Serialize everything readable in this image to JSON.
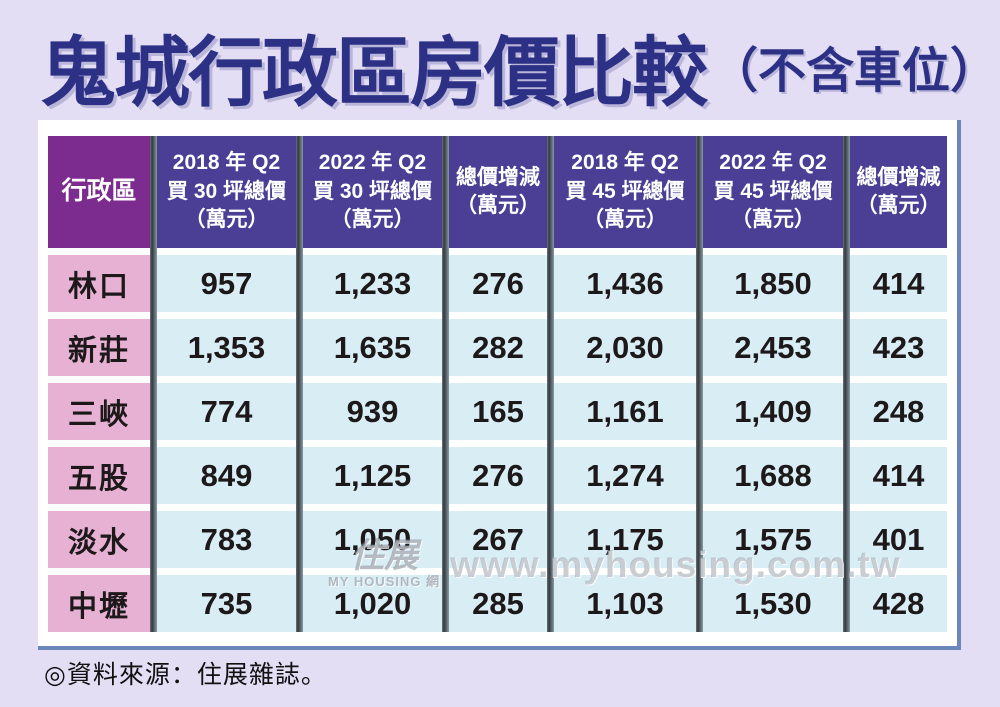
{
  "page": {
    "title_main": "鬼城行政區房價比較",
    "title_note": "（不含車位）",
    "source_note": "◎資料來源：住展雜誌。"
  },
  "watermark": {
    "logo_text": "住展",
    "logo_subtext": "MY HOUSING 網",
    "url": "www.myhousing.com.tw"
  },
  "colors": {
    "page_background": "#e4def5",
    "title_navy": "#2c3186",
    "header_purple": "#7c2b8e",
    "header_indigo": "#4a3e95",
    "district_pink": "#e7b1d3",
    "value_cell_blue": "#d9edf5",
    "panel_border_blue": "#6c86bb",
    "text_dark": "#1d191a"
  },
  "table": {
    "headers": [
      "行政區",
      "2018 年 Q2\n買 30 坪總價\n（萬元）",
      "2022 年 Q2\n買 30 坪總價\n（萬元）",
      "總價增減\n（萬元）",
      "2018 年 Q2\n買 45 坪總價\n（萬元）",
      "2022 年 Q2\n買 45 坪總價\n（萬元）",
      "總價增減\n（萬元）"
    ],
    "rows": [
      {
        "district": "林口",
        "values": [
          "957",
          "1,233",
          "276",
          "1,436",
          "1,850",
          "414"
        ]
      },
      {
        "district": "新莊",
        "values": [
          "1,353",
          "1,635",
          "282",
          "2,030",
          "2,453",
          "423"
        ]
      },
      {
        "district": "三峽",
        "values": [
          "774",
          "939",
          "165",
          "1,161",
          "1,409",
          "248"
        ]
      },
      {
        "district": "五股",
        "values": [
          "849",
          "1,125",
          "276",
          "1,274",
          "1,688",
          "414"
        ]
      },
      {
        "district": "淡水",
        "values": [
          "783",
          "1,050",
          "267",
          "1,175",
          "1,575",
          "401"
        ]
      },
      {
        "district": "中壢",
        "values": [
          "735",
          "1,020",
          "285",
          "1,103",
          "1,530",
          "428"
        ]
      }
    ]
  },
  "chart_data": {
    "type": "table",
    "title": "鬼城行政區房價比較（不含車位）",
    "categories": [
      "林口",
      "新莊",
      "三峽",
      "五股",
      "淡水",
      "中壢"
    ],
    "series": [
      {
        "name": "2018年Q2買30坪總價（萬元）",
        "values": [
          957,
          1353,
          774,
          849,
          783,
          735
        ]
      },
      {
        "name": "2022年Q2買30坪總價（萬元）",
        "values": [
          1233,
          1635,
          939,
          1125,
          1050,
          1020
        ]
      },
      {
        "name": "總價增減30坪（萬元）",
        "values": [
          276,
          282,
          165,
          276,
          267,
          285
        ]
      },
      {
        "name": "2018年Q2買45坪總價（萬元）",
        "values": [
          1436,
          2030,
          1161,
          1274,
          1175,
          1103
        ]
      },
      {
        "name": "2022年Q2買45坪總價（萬元）",
        "values": [
          1850,
          2453,
          1409,
          1688,
          1575,
          1530
        ]
      },
      {
        "name": "總價增減45坪（萬元）",
        "values": [
          414,
          423,
          248,
          414,
          401,
          428
        ]
      }
    ],
    "source": "住展雜誌"
  }
}
